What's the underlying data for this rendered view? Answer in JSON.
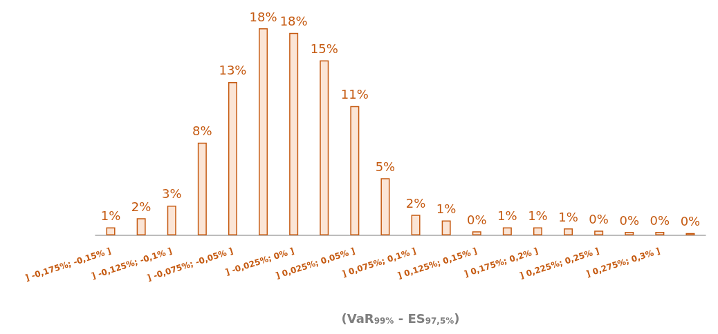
{
  "chart_data": {
    "type": "bar",
    "xlabel": "(VaR$_{99%}$ - ES$_{97,5%}$)",
    "categories": [
      "] -0,175%; -0,15% ]",
      null,
      "] -0,125%; -0,1% ]",
      null,
      "] -0,075%; -0,05% ]",
      null,
      "] -0,025%; 0% ]",
      null,
      "] 0,025%; 0,05% ]",
      null,
      "] 0,075%; 0,1% ]",
      null,
      "] 0,125%; 0,15% ]",
      null,
      "] 0,175%; 0,2% ]",
      null,
      "] 0,225%; 0,25% ]",
      null,
      "] 0,275%; 0,3% ]",
      null
    ],
    "values": [
      0.7,
      1.5,
      2.6,
      8.1,
      13.4,
      18.1,
      17.7,
      15.3,
      11.3,
      5.0,
      1.8,
      1.3,
      0.35,
      0.7,
      0.7,
      0.6,
      0.4,
      0.3,
      0.3,
      0.2
    ],
    "value_labels": [
      "1%",
      "2%",
      "3%",
      "8%",
      "13%",
      "18%",
      "18%",
      "15%",
      "11%",
      "5%",
      "2%",
      "1%",
      "0%",
      "1%",
      "1%",
      "1%",
      "0%",
      "0%",
      "0%",
      "0%"
    ],
    "color": "#fbe5d6"
  }
}
